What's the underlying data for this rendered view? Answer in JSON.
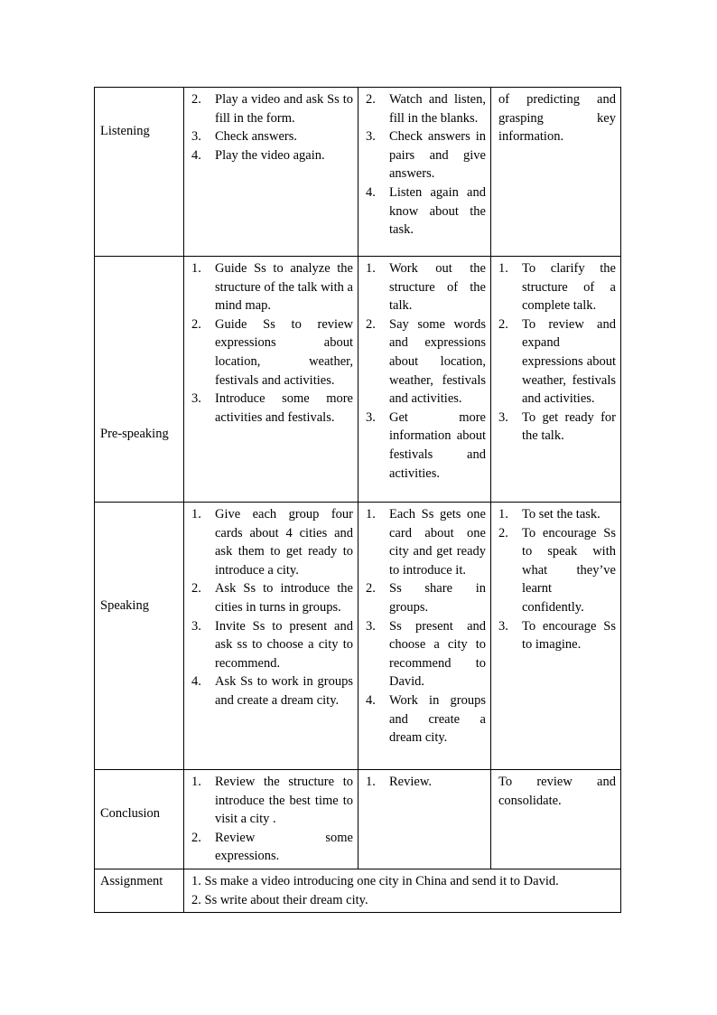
{
  "colors": {
    "page_background": "#ffffff",
    "table_border": "#000000",
    "text": "#000000"
  },
  "table": {
    "rows": [
      {
        "stage": "Listening",
        "teacher": [
          {
            "num": "2.",
            "text": "Play a video and ask Ss to fill in the form."
          },
          {
            "num": "3.",
            "text": "Check answers."
          },
          {
            "num": "4.",
            "text": "Play the video again."
          }
        ],
        "students": [
          {
            "num": "2.",
            "text": "Watch and listen, fill in the blanks."
          },
          {
            "num": "3.",
            "text": "Check answers in pairs and give answers."
          },
          {
            "num": "4.",
            "text": "Listen again and know about the task."
          }
        ],
        "purpose_plain": "of predicting and grasping key information."
      },
      {
        "stage": "Pre-speaking",
        "teacher": [
          {
            "num": "1.",
            "text": "Guide Ss to analyze the structure of the talk with a mind map."
          },
          {
            "num": "2.",
            "text": "Guide Ss to review expressions about location, weather, festivals and activities."
          },
          {
            "num": "3.",
            "text": "Introduce some more activities and festivals."
          }
        ],
        "students": [
          {
            "num": "1.",
            "text": "Work out the structure of the talk."
          },
          {
            "num": "2.",
            "text": "Say some words and expressions about location, weather, festivals and activities."
          },
          {
            "num": "3.",
            "text": "Get more information about festivals and activities."
          }
        ],
        "purpose": [
          {
            "num": "1.",
            "text": "To clarify the structure of a complete talk."
          },
          {
            "num": "2.",
            "text": "To review and expand expressions about weather, festivals and activities."
          },
          {
            "num": "3.",
            "text": "To get ready for the talk."
          }
        ]
      },
      {
        "stage": "Speaking",
        "teacher": [
          {
            "num": "1.",
            "text": "Give each group four cards about 4 cities and ask them to get ready to introduce a city."
          },
          {
            "num": "2.",
            "text": "Ask Ss to introduce the cities in turns in groups."
          },
          {
            "num": "3.",
            "text": "Invite Ss to present and ask ss to choose a city to recommend."
          },
          {
            "num": "4.",
            "text": "Ask Ss to work in groups and create a dream city."
          }
        ],
        "students": [
          {
            "num": "1.",
            "text": "Each Ss gets one card about one city and get ready to introduce it."
          },
          {
            "num": "2.",
            "text": "Ss share in groups."
          },
          {
            "num": "3.",
            "text": "Ss present and choose a city to recommend to David."
          },
          {
            "num": "4.",
            "text": "Work in groups and create a dream city."
          }
        ],
        "purpose": [
          {
            "num": "1.",
            "text": "To set the task."
          },
          {
            "num": "2.",
            "text": "To encourage Ss to speak with what they’ve learnt confidently."
          },
          {
            "num": "3.",
            "text": "To encourage Ss to imagine."
          }
        ]
      },
      {
        "stage": "Conclusion",
        "teacher": [
          {
            "num": "1.",
            "text": "Review the structure to introduce the best time to visit a city ."
          },
          {
            "num": "2.",
            "text": "Review some expressions."
          }
        ],
        "students": [
          {
            "num": "1.",
            "text": "Review."
          }
        ],
        "purpose_plain": "To review and consolidate."
      },
      {
        "stage": "Assignment",
        "lines": [
          "1. Ss make a video introducing one city in China and send it to David.",
          "2. Ss write about their dream city."
        ]
      }
    ]
  }
}
